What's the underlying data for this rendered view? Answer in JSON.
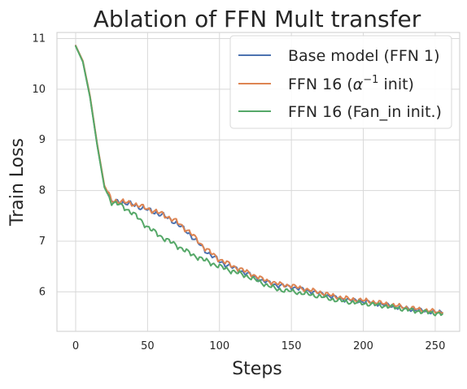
{
  "chart_data": {
    "type": "line",
    "title": "Ablation of FFN Mult transfer",
    "xlabel": "Steps",
    "ylabel": "Train Loss",
    "xlim": [
      -13,
      267
    ],
    "ylim": [
      5.22,
      11.12
    ],
    "xticks": [
      0,
      50,
      100,
      150,
      200,
      250
    ],
    "xtick_labels": [
      "0",
      "50",
      "100",
      "150",
      "200",
      "250"
    ],
    "yticks": [
      6,
      7,
      8,
      9,
      10,
      11
    ],
    "ytick_labels": [
      "6",
      "7",
      "8",
      "9",
      "10",
      "11"
    ],
    "grid": true,
    "legend_position": "top-right",
    "series": [
      {
        "name": "Base model (FFN 1)",
        "color": "#4c72b0",
        "points": [
          [
            0,
            10.86
          ],
          [
            5,
            10.55
          ],
          [
            10,
            9.85
          ],
          [
            15,
            8.9
          ],
          [
            20,
            8.08
          ],
          [
            25,
            7.78
          ],
          [
            30,
            7.78
          ],
          [
            40,
            7.72
          ],
          [
            50,
            7.62
          ],
          [
            60,
            7.52
          ],
          [
            70,
            7.36
          ],
          [
            80,
            7.12
          ],
          [
            90,
            6.82
          ],
          [
            100,
            6.6
          ],
          [
            110,
            6.47
          ],
          [
            120,
            6.35
          ],
          [
            130,
            6.22
          ],
          [
            140,
            6.13
          ],
          [
            150,
            6.1
          ],
          [
            160,
            6.03
          ],
          [
            170,
            5.97
          ],
          [
            180,
            5.89
          ],
          [
            190,
            5.84
          ],
          [
            200,
            5.81
          ],
          [
            210,
            5.77
          ],
          [
            220,
            5.72
          ],
          [
            230,
            5.67
          ],
          [
            240,
            5.63
          ],
          [
            250,
            5.6
          ],
          [
            255,
            5.58
          ]
        ]
      },
      {
        "name": "FFN 16 ($\\alpha^{-1}$ init)",
        "legend_main": "FFN 16 (",
        "legend_symbol": "α",
        "legend_sup": "−1",
        "legend_tail": " init)",
        "color": "#dd8452",
        "points": [
          [
            0,
            10.86
          ],
          [
            5,
            10.56
          ],
          [
            10,
            9.87
          ],
          [
            15,
            8.92
          ],
          [
            20,
            8.1
          ],
          [
            25,
            7.8
          ],
          [
            30,
            7.79
          ],
          [
            40,
            7.74
          ],
          [
            50,
            7.64
          ],
          [
            60,
            7.54
          ],
          [
            70,
            7.39
          ],
          [
            80,
            7.16
          ],
          [
            90,
            6.86
          ],
          [
            100,
            6.64
          ],
          [
            110,
            6.5
          ],
          [
            120,
            6.38
          ],
          [
            130,
            6.25
          ],
          [
            140,
            6.16
          ],
          [
            150,
            6.12
          ],
          [
            160,
            6.05
          ],
          [
            170,
            5.99
          ],
          [
            180,
            5.91
          ],
          [
            190,
            5.86
          ],
          [
            200,
            5.83
          ],
          [
            210,
            5.79
          ],
          [
            220,
            5.74
          ],
          [
            230,
            5.69
          ],
          [
            240,
            5.65
          ],
          [
            250,
            5.61
          ],
          [
            255,
            5.59
          ]
        ]
      },
      {
        "name": "FFN 16 (Fan_in init.)",
        "color": "#55a868",
        "points": [
          [
            0,
            10.85
          ],
          [
            5,
            10.54
          ],
          [
            10,
            9.84
          ],
          [
            15,
            8.89
          ],
          [
            20,
            8.06
          ],
          [
            25,
            7.77
          ],
          [
            30,
            7.73
          ],
          [
            40,
            7.55
          ],
          [
            50,
            7.28
          ],
          [
            60,
            7.08
          ],
          [
            70,
            6.92
          ],
          [
            80,
            6.75
          ],
          [
            90,
            6.62
          ],
          [
            100,
            6.5
          ],
          [
            110,
            6.4
          ],
          [
            120,
            6.3
          ],
          [
            130,
            6.17
          ],
          [
            140,
            6.05
          ],
          [
            150,
            6.01
          ],
          [
            160,
            5.96
          ],
          [
            170,
            5.91
          ],
          [
            180,
            5.84
          ],
          [
            190,
            5.8
          ],
          [
            200,
            5.77
          ],
          [
            210,
            5.74
          ],
          [
            220,
            5.7
          ],
          [
            230,
            5.65
          ],
          [
            240,
            5.61
          ],
          [
            250,
            5.58
          ],
          [
            255,
            5.56
          ]
        ]
      }
    ]
  }
}
